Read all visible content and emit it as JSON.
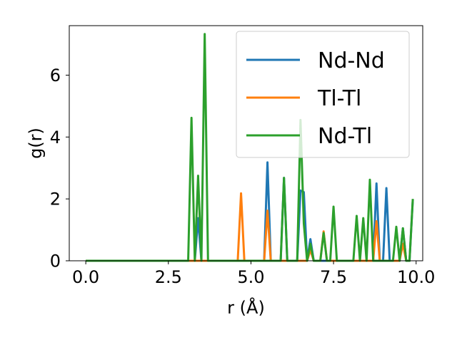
{
  "chart_data": {
    "type": "line",
    "xlabel": "r (Å)",
    "ylabel": "g(r)",
    "xlim": [
      -0.5,
      10.2
    ],
    "ylim": [
      0,
      7.6
    ],
    "xticks": [
      0.0,
      2.5,
      5.0,
      7.5,
      10.0
    ],
    "xtick_labels": [
      "0.0",
      "2.5",
      "5.0",
      "7.5",
      "10.0"
    ],
    "yticks": [
      0,
      2,
      4,
      6
    ],
    "ytick_labels": [
      "0",
      "2",
      "4",
      "6"
    ],
    "grid": false,
    "legend_position": "top-right",
    "series": [
      {
        "name": "Nd-Nd",
        "color": "#1f77b4",
        "points": [
          [
            0,
            0
          ],
          [
            3.1,
            0
          ],
          [
            3.2,
            0
          ],
          [
            3.3,
            0
          ],
          [
            3.4,
            1.38
          ],
          [
            3.5,
            0
          ],
          [
            3.6,
            0
          ],
          [
            3.7,
            0
          ],
          [
            5.4,
            0
          ],
          [
            5.5,
            3.18
          ],
          [
            5.6,
            0
          ],
          [
            5.9,
            0
          ],
          [
            6.0,
            2.68
          ],
          [
            6.1,
            0
          ],
          [
            6.4,
            0
          ],
          [
            6.5,
            2.27
          ],
          [
            6.6,
            2.22
          ],
          [
            6.7,
            0
          ],
          [
            6.8,
            0.7
          ],
          [
            6.9,
            0
          ],
          [
            8.7,
            0
          ],
          [
            8.8,
            2.5
          ],
          [
            8.9,
            0
          ],
          [
            9.0,
            0
          ],
          [
            9.1,
            2.35
          ],
          [
            9.2,
            0
          ],
          [
            9.5,
            0
          ],
          [
            9.6,
            1.05
          ],
          [
            9.7,
            0
          ],
          [
            9.8,
            0
          ],
          [
            9.9,
            1.98
          ]
        ]
      },
      {
        "name": "Tl-Tl",
        "color": "#ff7f0e",
        "points": [
          [
            0,
            0
          ],
          [
            4.6,
            0
          ],
          [
            4.7,
            2.18
          ],
          [
            4.8,
            0
          ],
          [
            5.4,
            0
          ],
          [
            5.5,
            1.62
          ],
          [
            5.6,
            0
          ],
          [
            6.7,
            0
          ],
          [
            6.8,
            0.35
          ],
          [
            6.9,
            0
          ],
          [
            7.1,
            0
          ],
          [
            7.2,
            0.95
          ],
          [
            7.3,
            0
          ],
          [
            8.7,
            0
          ],
          [
            8.8,
            1.28
          ],
          [
            8.9,
            0
          ],
          [
            9.5,
            0
          ],
          [
            9.6,
            0.55
          ],
          [
            9.7,
            0
          ]
        ]
      },
      {
        "name": "Nd-Tl",
        "color": "#2ca02c",
        "points": [
          [
            0,
            0
          ],
          [
            3.1,
            0
          ],
          [
            3.2,
            4.62
          ],
          [
            3.3,
            0
          ],
          [
            3.4,
            2.75
          ],
          [
            3.5,
            0
          ],
          [
            3.6,
            7.33
          ],
          [
            3.7,
            0
          ],
          [
            5.9,
            0
          ],
          [
            6.0,
            2.68
          ],
          [
            6.1,
            0
          ],
          [
            6.4,
            0
          ],
          [
            6.5,
            4.55
          ],
          [
            6.6,
            1.2
          ],
          [
            6.7,
            0
          ],
          [
            6.8,
            0.55
          ],
          [
            6.9,
            0
          ],
          [
            7.1,
            0
          ],
          [
            7.2,
            0.9
          ],
          [
            7.3,
            0
          ],
          [
            7.4,
            0
          ],
          [
            7.5,
            1.75
          ],
          [
            7.6,
            0
          ],
          [
            8.1,
            0
          ],
          [
            8.2,
            1.45
          ],
          [
            8.3,
            0
          ],
          [
            8.4,
            1.38
          ],
          [
            8.5,
            0
          ],
          [
            8.6,
            2.62
          ],
          [
            8.7,
            0
          ],
          [
            9.3,
            0
          ],
          [
            9.4,
            1.1
          ],
          [
            9.5,
            0
          ],
          [
            9.6,
            1.05
          ],
          [
            9.7,
            0
          ],
          [
            9.8,
            0
          ],
          [
            9.9,
            2.0
          ]
        ]
      }
    ]
  }
}
